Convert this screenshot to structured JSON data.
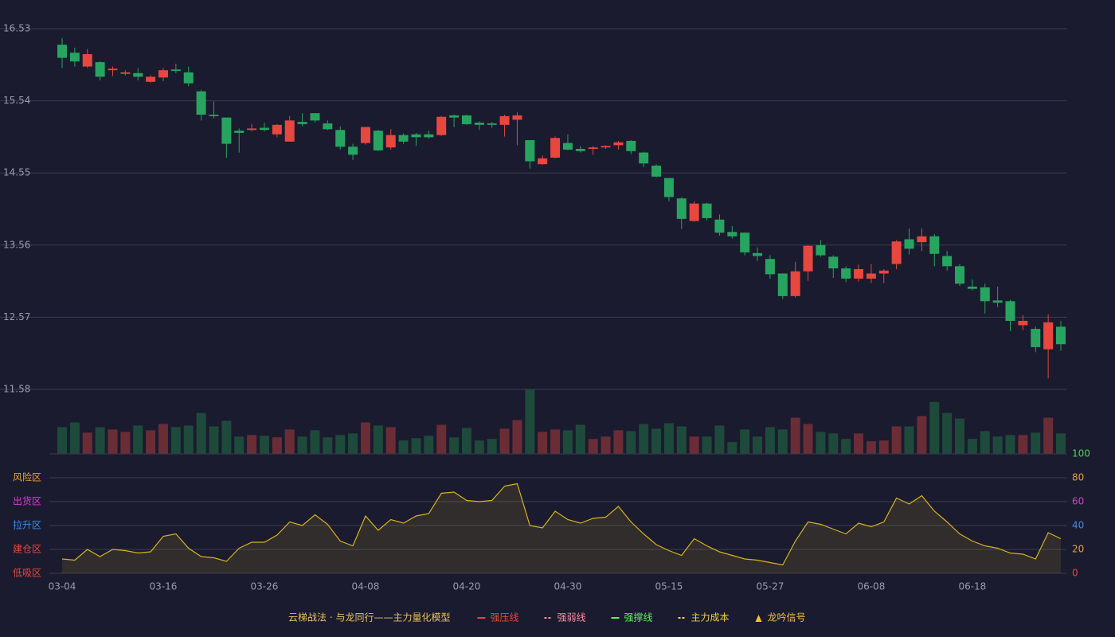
{
  "chart_data": [
    {
      "type": "candlestick",
      "categories": [
        "03-04",
        null,
        null,
        null,
        null,
        null,
        null,
        null,
        "03-16",
        null,
        null,
        null,
        null,
        null,
        null,
        null,
        "03-26",
        null,
        null,
        null,
        null,
        null,
        null,
        null,
        "04-08",
        null,
        null,
        null,
        null,
        null,
        null,
        null,
        "04-20",
        null,
        null,
        null,
        null,
        null,
        null,
        null,
        "04-30",
        null,
        null,
        null,
        null,
        null,
        null,
        null,
        "05-15",
        null,
        null,
        null,
        null,
        null,
        null,
        null,
        "05-27",
        null,
        null,
        null,
        null,
        null,
        null,
        null,
        "06-08",
        null,
        null,
        null,
        null,
        null,
        null,
        null,
        "06-18",
        null,
        null,
        null,
        null,
        null,
        null,
        null
      ],
      "open": [
        16.31,
        16.2,
        16.01,
        16.07,
        15.96,
        15.91,
        15.92,
        15.8,
        15.86,
        15.97,
        15.93,
        15.67,
        15.35,
        15.31,
        15.13,
        15.14,
        15.17,
        15.08,
        14.98,
        15.25,
        15.37,
        15.23,
        15.14,
        14.91,
        14.96,
        15.13,
        14.9,
        15.07,
        15.08,
        15.08,
        15.07,
        15.34,
        15.34,
        15.24,
        15.23,
        15.21,
        15.28,
        15.0,
        14.67,
        14.76,
        14.96,
        14.88,
        14.88,
        14.9,
        14.93,
        14.99,
        14.83,
        14.65,
        14.48,
        14.2,
        13.89,
        14.13,
        13.91,
        13.74,
        13.73,
        13.45,
        13.37,
        13.17,
        12.86,
        13.2,
        13.56,
        13.4,
        13.24,
        13.1,
        13.1,
        13.17,
        13.3,
        13.64,
        13.6,
        13.68,
        13.41,
        13.27,
        12.99,
        12.98,
        12.8,
        12.79,
        12.46,
        12.41,
        12.13,
        12.44
      ],
      "high": [
        16.4,
        16.27,
        16.25,
        16.08,
        16.01,
        15.96,
        15.99,
        15.89,
        15.99,
        16.05,
        16.01,
        15.69,
        15.53,
        15.31,
        15.16,
        15.22,
        15.24,
        15.22,
        15.33,
        15.37,
        15.37,
        15.27,
        15.19,
        14.95,
        15.18,
        15.14,
        15.15,
        15.09,
        15.1,
        15.13,
        15.33,
        15.35,
        15.35,
        15.26,
        15.25,
        15.35,
        15.38,
        15.0,
        14.79,
        15.05,
        15.08,
        14.92,
        14.92,
        14.93,
        14.99,
        15.0,
        14.84,
        14.67,
        14.48,
        14.22,
        14.16,
        14.14,
        13.98,
        13.82,
        13.73,
        13.53,
        13.42,
        13.17,
        13.33,
        13.56,
        13.63,
        13.42,
        13.27,
        13.29,
        13.3,
        13.23,
        13.63,
        13.79,
        13.79,
        13.71,
        13.48,
        13.3,
        13.09,
        13.03,
        12.99,
        12.81,
        12.6,
        12.44,
        12.61,
        12.52
      ],
      "low": [
        15.99,
        16.01,
        15.99,
        15.82,
        15.88,
        15.89,
        15.82,
        15.79,
        15.81,
        15.92,
        15.74,
        15.27,
        15.3,
        14.76,
        14.83,
        15.12,
        15.12,
        15.04,
        14.98,
        15.19,
        15.24,
        15.14,
        14.87,
        14.73,
        14.94,
        14.85,
        14.87,
        14.95,
        14.92,
        15.02,
        15.06,
        15.18,
        15.21,
        15.14,
        15.17,
        15.05,
        14.93,
        14.61,
        14.66,
        14.75,
        14.86,
        14.83,
        14.8,
        14.88,
        14.87,
        14.81,
        14.63,
        14.49,
        14.16,
        13.78,
        13.88,
        13.9,
        13.69,
        13.65,
        13.42,
        13.34,
        13.1,
        12.82,
        12.84,
        13.07,
        13.4,
        13.11,
        13.05,
        13.06,
        13.04,
        13.04,
        13.23,
        13.43,
        13.48,
        13.27,
        13.21,
        13.0,
        12.94,
        12.62,
        12.71,
        12.38,
        12.39,
        12.09,
        11.73,
        12.11
      ],
      "close": [
        16.13,
        16.08,
        16.18,
        15.87,
        15.98,
        15.93,
        15.87,
        15.87,
        15.96,
        15.95,
        15.78,
        15.35,
        15.33,
        14.95,
        15.1,
        15.16,
        15.14,
        15.21,
        15.27,
        15.22,
        15.27,
        15.15,
        14.91,
        14.8,
        15.18,
        14.86,
        15.07,
        14.98,
        15.04,
        15.04,
        15.32,
        15.31,
        15.22,
        15.21,
        15.21,
        15.33,
        15.34,
        14.71,
        14.75,
        15.03,
        14.87,
        14.85,
        14.9,
        14.92,
        14.97,
        14.85,
        14.68,
        14.5,
        14.22,
        13.92,
        14.13,
        13.93,
        13.73,
        13.68,
        13.46,
        13.41,
        13.16,
        12.86,
        13.2,
        13.55,
        13.42,
        13.24,
        13.1,
        13.23,
        13.17,
        13.21,
        13.61,
        13.51,
        13.68,
        13.44,
        13.27,
        13.03,
        12.96,
        12.79,
        12.77,
        12.52,
        12.52,
        12.16,
        12.5,
        12.2
      ],
      "up_color": "#e8473f",
      "down_color": "#27a560",
      "ylim": [
        11.58,
        16.53
      ],
      "yticks": [
        16.53,
        15.54,
        14.55,
        13.56,
        12.57,
        11.58
      ],
      "grid": true
    },
    {
      "type": "bar",
      "values": [
        34,
        40,
        27,
        34,
        31,
        28,
        36,
        30,
        38,
        34,
        36,
        52,
        35,
        42,
        22,
        24,
        23,
        21,
        31,
        22,
        30,
        21,
        24,
        26,
        40,
        36,
        34,
        17,
        20,
        23,
        37,
        21,
        33,
        17,
        19,
        32,
        43,
        82,
        28,
        31,
        30,
        37,
        19,
        22,
        30,
        29,
        38,
        32,
        39,
        35,
        22,
        22,
        36,
        15,
        31,
        22,
        34,
        31,
        46,
        38,
        28,
        26,
        19,
        26,
        16,
        17,
        35,
        35,
        48,
        66,
        52,
        45,
        19,
        29,
        22,
        24,
        24,
        27,
        46,
        26
      ],
      "up_color": "#6a2d36",
      "down_color": "#1e4a3b"
    },
    {
      "type": "line",
      "values": [
        12,
        11,
        20,
        14,
        20,
        19,
        17,
        18,
        31,
        33,
        21,
        14,
        13,
        10,
        21,
        26,
        26,
        32,
        43,
        40,
        49,
        41,
        27,
        23,
        48,
        36,
        45,
        42,
        48,
        50,
        67,
        68,
        61,
        60,
        61,
        73,
        75,
        40,
        38,
        52,
        45,
        42,
        46,
        47,
        56,
        43,
        33,
        24,
        19,
        15,
        29,
        23,
        18,
        15,
        12,
        11,
        9,
        7,
        27,
        43,
        41,
        37,
        33,
        42,
        39,
        43,
        63,
        58,
        65,
        52,
        43,
        33,
        27,
        23,
        21,
        17,
        16,
        12,
        34,
        29
      ],
      "color": "#d9b21f",
      "ylim": [
        0,
        100
      ],
      "yticks": [
        0,
        20,
        40,
        60,
        80,
        100
      ],
      "ytick_colors": [
        "#e8473f",
        "#e8a03a",
        "#3f8de8",
        "#d63fd6",
        "#e8a03a",
        "#3fdc4f"
      ],
      "zones": [
        {
          "label": "风险区",
          "value": 80,
          "color": "#e8a03a"
        },
        {
          "label": "出货区",
          "value": 60,
          "color": "#d63fd6"
        },
        {
          "label": "拉升区",
          "value": 40,
          "color": "#3f8de8"
        },
        {
          "label": "建仓区",
          "value": 20,
          "color": "#e8473f"
        },
        {
          "label": "低吸区",
          "value": 0,
          "color": "#e8473f"
        }
      ],
      "grid": true
    }
  ],
  "legend": {
    "title": "云梯战法 · 与龙同行——主力量化模型",
    "items": [
      {
        "label": "强压线",
        "color": "#e8473f",
        "style": "solid"
      },
      {
        "label": "强弱线",
        "color": "#ff8aa0",
        "style": "dashed"
      },
      {
        "label": "强撑线",
        "color": "#5ef05e",
        "style": "solid"
      },
      {
        "label": "主力成本",
        "color": "#f0d040",
        "style": "dashed"
      },
      {
        "label": "龙吟信号",
        "color": "#f0c040",
        "style": "triangle"
      }
    ]
  }
}
